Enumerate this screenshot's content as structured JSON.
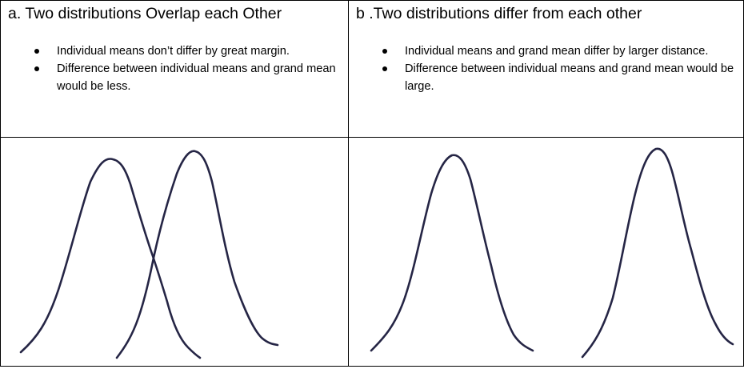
{
  "panel_a": {
    "heading": "a. Two distributions Overlap each Other",
    "points": [
      "Individual means don’t differ by great margin.",
      "Difference between individual means and grand mean would be less."
    ]
  },
  "panel_b": {
    "heading": "b .Two distributions differ from each other",
    "points": [
      "Individual means and grand mean differ by larger distance.",
      "Difference between individual means and grand mean would be large."
    ]
  },
  "line_color": "#252545"
}
